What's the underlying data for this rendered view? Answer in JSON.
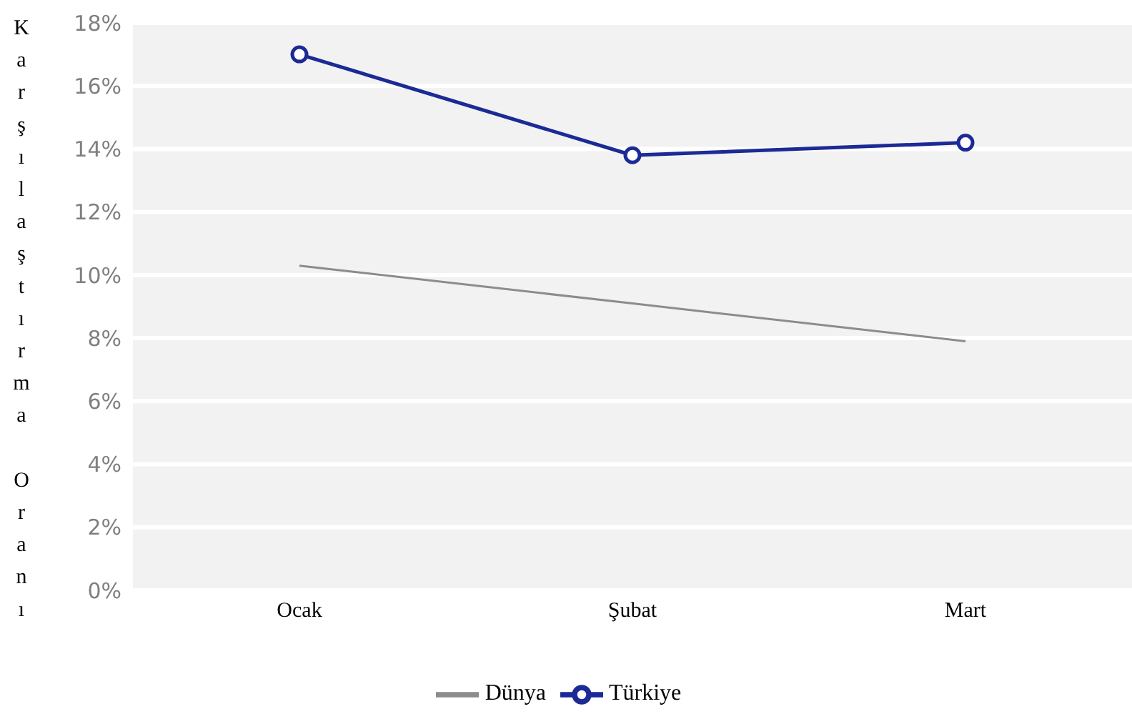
{
  "chart_data": {
    "type": "line",
    "ylabel": "Karşılaştırma Oranı",
    "categories": [
      "Ocak",
      "Şubat",
      "Mart"
    ],
    "series": [
      {
        "name": "Dünya",
        "color": "#8c8c8c",
        "values": [
          10.3,
          9.1,
          7.9
        ],
        "marker": "none"
      },
      {
        "name": "Türkiye",
        "color": "#1c2a96",
        "values": [
          17.0,
          13.8,
          14.2
        ],
        "marker": "circle"
      }
    ],
    "ylim": [
      0,
      18
    ],
    "yticks": [
      {
        "value": 0,
        "label": "0%"
      },
      {
        "value": 2,
        "label": "2%"
      },
      {
        "value": 4,
        "label": "4%"
      },
      {
        "value": 6,
        "label": "6%"
      },
      {
        "value": 8,
        "label": "8%"
      },
      {
        "value": 10,
        "label": "10%"
      },
      {
        "value": 12,
        "label": "12%"
      },
      {
        "value": 14,
        "label": "14%"
      },
      {
        "value": 16,
        "label": "16%"
      },
      {
        "value": 18,
        "label": "18%"
      }
    ],
    "grid": "y",
    "legend": "bottom"
  }
}
